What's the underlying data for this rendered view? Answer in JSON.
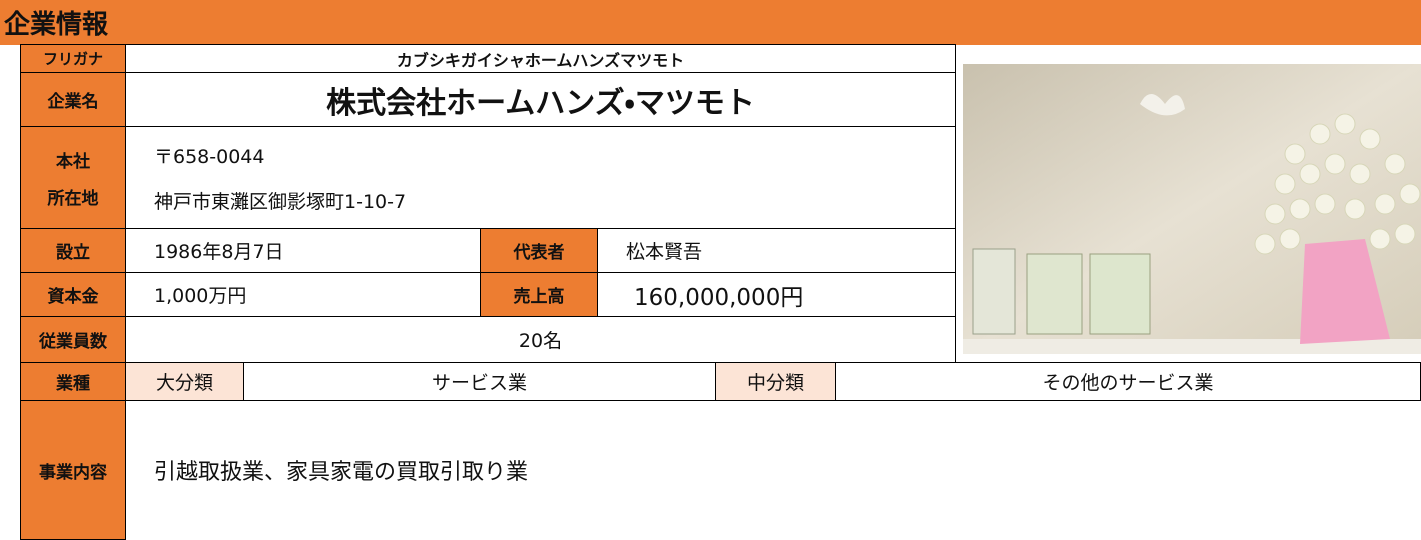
{
  "header": {
    "title": "企業情報"
  },
  "furigana": {
    "label": "フリガナ",
    "value": "カブシキガイシャホームハンズマツモト"
  },
  "company": {
    "label": "企業名",
    "value": "株式会社ホームハンズ・マツモト"
  },
  "address": {
    "label_line1": "本社",
    "label_line2": "所在地",
    "postal": "〒658-0044",
    "street": "神戸市東灘区御影塚町1-10-7"
  },
  "founded": {
    "label": "設立",
    "value": "1986年8月7日"
  },
  "representative": {
    "label": "代表者",
    "value": "松本賢吾"
  },
  "capital": {
    "label": "資本金",
    "value": "1,000万円"
  },
  "sales": {
    "label": "売上高",
    "value": "160,000,000円"
  },
  "employees": {
    "label": "従業員数",
    "value": "20名"
  },
  "industry": {
    "label": "業種",
    "major_label": "大分類",
    "major": "サービス業",
    "middle_label": "中分類",
    "middle": "その他のサービス業"
  },
  "business": {
    "label": "事業内容",
    "value": "引越取扱業、家具家電の買取引取り業"
  }
}
